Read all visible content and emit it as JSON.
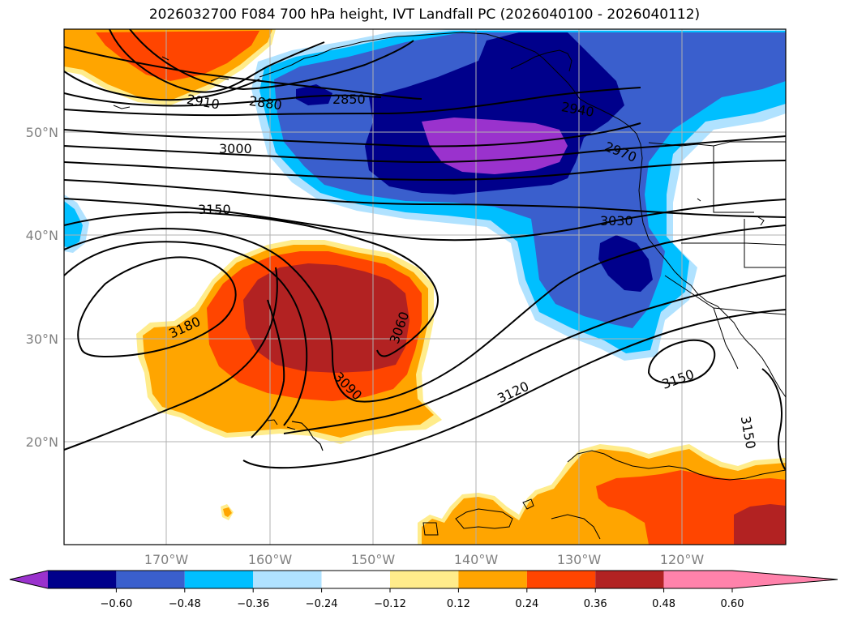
{
  "title": "2026032700 F084 700 hPa height, IVT Landfall PC (2026040100 - 2026040112)",
  "axes": {
    "lat_labels": [
      "50°N",
      "40°N",
      "30°N",
      "20°N"
    ],
    "lon_labels": [
      "170°W",
      "160°W",
      "150°W",
      "140°W",
      "130°W",
      "120°W"
    ]
  },
  "contour_labels": [
    "2910",
    "2880",
    "2850",
    "2940",
    "2970",
    "3000",
    "3030",
    "3150",
    "3180",
    "3060",
    "3090",
    "3120",
    "3150",
    "3150"
  ],
  "colorbar": {
    "ticks": [
      "−0.60",
      "−0.48",
      "−0.36",
      "−0.24",
      "−0.12",
      "0.12",
      "0.24",
      "0.36",
      "0.48",
      "0.60"
    ],
    "colors": [
      "#9a32cd",
      "#00008b",
      "#3a5fcd",
      "#00bfff",
      "#b0e2ff",
      "#ffffff",
      "#ffec8b",
      "#ffa500",
      "#ff4500",
      "#b22222",
      "#ff82ab"
    ]
  }
}
